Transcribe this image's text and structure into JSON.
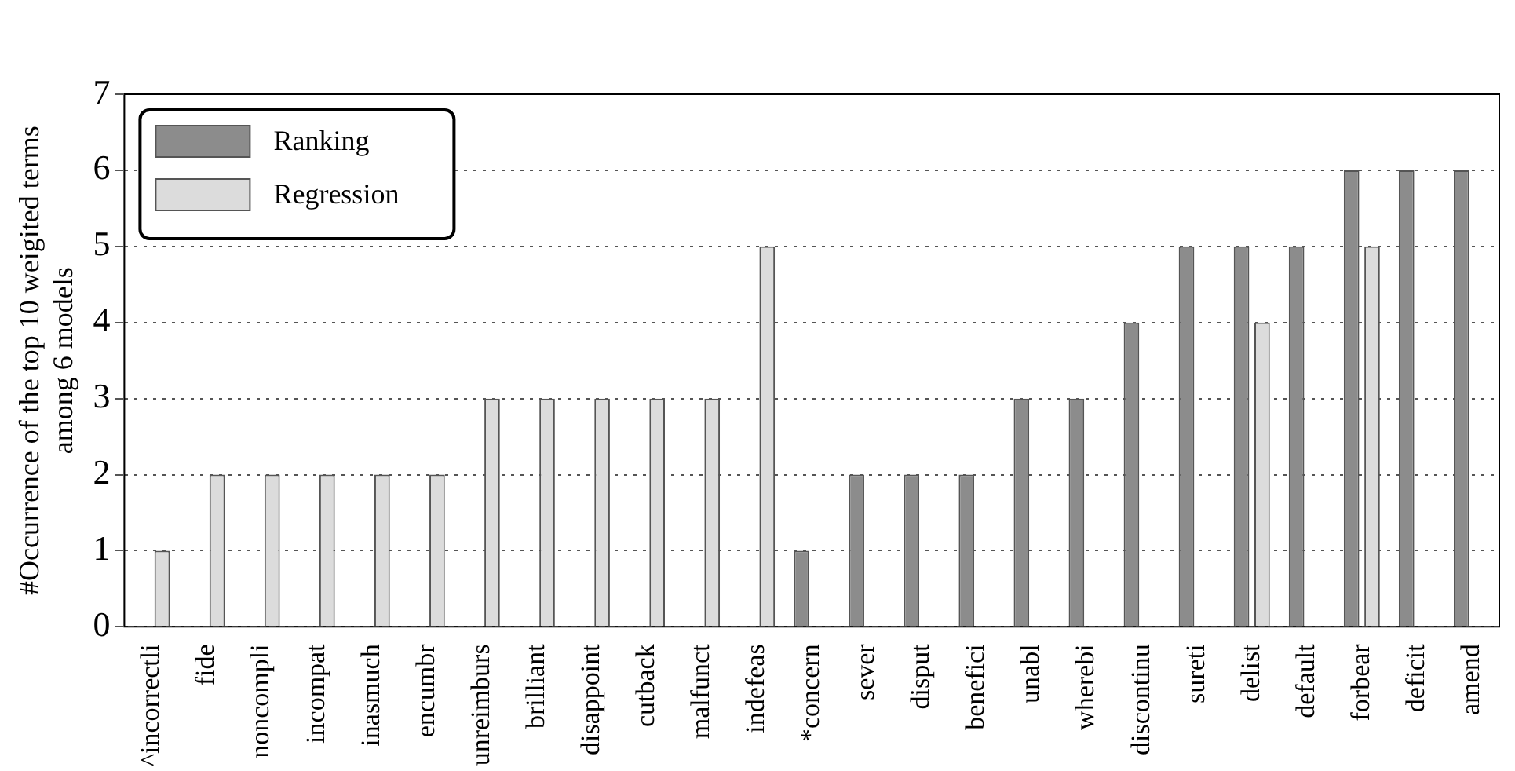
{
  "chart_data": {
    "type": "bar",
    "ylabel": "#Occurrence of the top 10 weigited terms\namong 6 models",
    "categories": [
      "^incorrectli",
      "fide",
      "noncompli",
      "incompat",
      "inasmuch",
      "encumbr",
      "unreimburs",
      "brilliant",
      "disappoint",
      "cutback",
      "malfunct",
      "indefeas",
      "*concern",
      "sever",
      "disput",
      "benefici",
      "unabl",
      "wherebi",
      "discontinu",
      "sureti",
      "delist",
      "default",
      "forbear",
      "deficit",
      "amend"
    ],
    "series": [
      {
        "name": "Ranking",
        "color": "#8c8c8c",
        "values": [
          0,
          0,
          0,
          0,
          0,
          0,
          0,
          0,
          0,
          0,
          0,
          0,
          1,
          2,
          2,
          2,
          3,
          3,
          4,
          5,
          5,
          5,
          6,
          6,
          6
        ]
      },
      {
        "name": "Regression",
        "color": "#dcdcdc",
        "values": [
          1,
          2,
          2,
          2,
          2,
          2,
          3,
          3,
          3,
          3,
          3,
          5,
          0,
          0,
          0,
          0,
          0,
          0,
          0,
          0,
          4,
          0,
          5,
          0,
          0
        ]
      }
    ],
    "ylim": [
      0,
      7
    ],
    "yticks": [
      0,
      1,
      2,
      3,
      4,
      5,
      6,
      7
    ],
    "grid": "y",
    "legend": "top left"
  }
}
